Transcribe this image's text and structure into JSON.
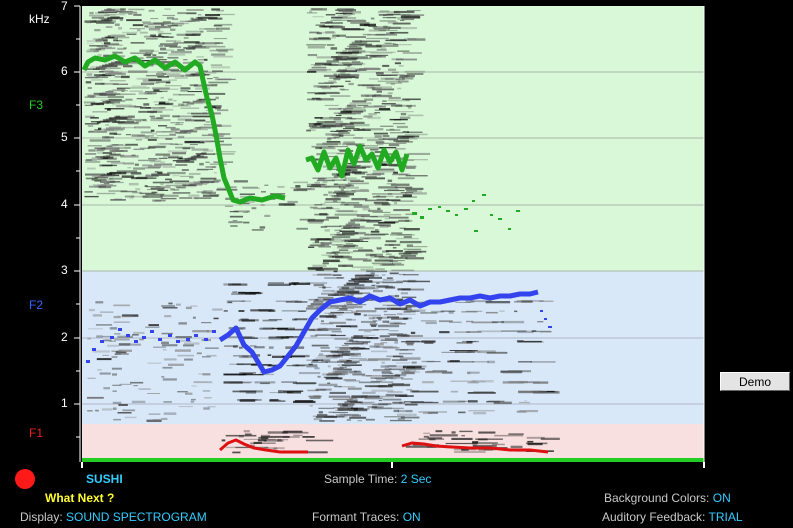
{
  "y_axis": {
    "unit_label": "kHz",
    "ticks": [
      "7",
      "6",
      "5",
      "4",
      "3",
      "2",
      "1"
    ]
  },
  "bands": {
    "f3_label": "F3",
    "f2_label": "F2",
    "f1_label": "F1",
    "f3_color": "#22aa22",
    "f2_color": "#3366ff",
    "f1_color": "#ee2222"
  },
  "colors": {
    "f3_band_bg": "#d8f8d8",
    "f2_band_bg": "#d8e8f8",
    "f1_band_bg": "#f8e0e0",
    "accent_cyan": "#33ccff",
    "what_next_yellow": "#ffff33"
  },
  "word": "SUSHI",
  "what_next": "What Next ?",
  "sample_time": {
    "label": "Sample Time:",
    "value": "2 Sec"
  },
  "display": {
    "label": "Display:",
    "value": "SOUND SPECTROGRAM"
  },
  "formant_traces": {
    "label": "Formant Traces:",
    "value": "ON"
  },
  "background_colors": {
    "label": "Background Colors:",
    "value": "ON"
  },
  "auditory_feedback": {
    "label": "Auditory Feedback:",
    "value": "TRIAL"
  },
  "demo_button": "Demo"
}
